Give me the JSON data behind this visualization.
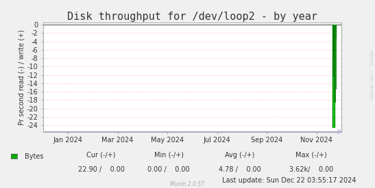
{
  "title": "Disk throughput for /dev/loop2 - by year",
  "ylabel": "Pr second read (-) / write (+)",
  "background_color": "#f0f0f0",
  "plot_bg_color": "#ffffff",
  "grid_color": "#ff9999",
  "border_color": "#aaaaaa",
  "ylim": [
    -25.5,
    0.5
  ],
  "yticks": [
    0,
    -2,
    -4,
    -6,
    -8,
    -10,
    -12,
    -14,
    -16,
    -18,
    -20,
    -22,
    -24
  ],
  "xticklabels": [
    "Jan 2024",
    "Mar 2024",
    "May 2024",
    "Jul 2024",
    "Sep 2024",
    "Nov 2024"
  ],
  "xtick_positions": [
    0.0833,
    0.25,
    0.4167,
    0.5833,
    0.75,
    0.9167
  ],
  "line_color": "#00cc00",
  "line_color_dark": "#007700",
  "legend_label": "Bytes",
  "legend_color": "#00aa00",
  "cur_neg": "22.90",
  "cur_pos": "0.00",
  "min_neg": "0.00",
  "min_pos": "0.00",
  "avg_neg": "4.78",
  "avg_pos": "0.00",
  "max_neg": "3.62k",
  "max_pos": "0.00",
  "last_update": "Last update: Sun Dec 22 03:55:17 2024",
  "munin_version": "Munin 2.0.57",
  "watermark": "RRDTOOL / TOBI OETIKER",
  "title_fontsize": 11,
  "axis_fontsize": 7,
  "tick_fontsize": 7,
  "legend_fontsize": 7
}
